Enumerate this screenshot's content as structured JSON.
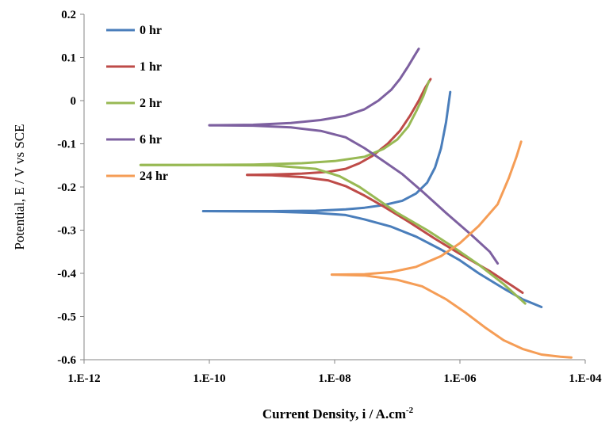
{
  "chart_data": {
    "type": "line",
    "title": "",
    "xlabel": "Current Density, i / A.cm",
    "xlabel_superscript": "-2",
    "ylabel": "Potential, E / V vs SCE",
    "x_scale": "log",
    "xlim": [
      1e-12,
      0.0001
    ],
    "ylim": [
      -0.6,
      0.2
    ],
    "x_tick_labels": [
      "1.E-12",
      "1.E-10",
      "1.E-08",
      "1.E-06",
      "1.E-04"
    ],
    "x_tick_values": [
      1e-12,
      1e-10,
      1e-08,
      1e-06,
      0.0001
    ],
    "y_ticks": [
      "-0.6",
      "-0.5",
      "-0.4",
      "-0.3",
      "-0.2",
      "-0.1",
      "0",
      "0.1",
      "0.2"
    ],
    "y_tick_values": [
      -0.6,
      -0.5,
      -0.4,
      -0.3,
      -0.2,
      -0.1,
      0,
      0.1,
      0.2
    ],
    "grid": false,
    "legend_position": "top-left",
    "series": [
      {
        "name": "0 hr",
        "color": "#4a7ebb",
        "anodic": [
          [
            8e-11,
            -0.256
          ],
          [
            1e-09,
            -0.256
          ],
          [
            5e-09,
            -0.255
          ],
          [
            1.5e-08,
            -0.252
          ],
          [
            3e-08,
            -0.248
          ],
          [
            6e-08,
            -0.242
          ],
          [
            1.2e-07,
            -0.232
          ],
          [
            2e-07,
            -0.215
          ],
          [
            3e-07,
            -0.19
          ],
          [
            4e-07,
            -0.155
          ],
          [
            5e-07,
            -0.11
          ],
          [
            6e-07,
            -0.05
          ],
          [
            7e-07,
            0.02
          ]
        ],
        "cathodic": [
          [
            8e-11,
            -0.256
          ],
          [
            1e-09,
            -0.257
          ],
          [
            5e-09,
            -0.26
          ],
          [
            1.5e-08,
            -0.265
          ],
          [
            3e-08,
            -0.275
          ],
          [
            8e-08,
            -0.292
          ],
          [
            2e-07,
            -0.315
          ],
          [
            5e-07,
            -0.345
          ],
          [
            1e-06,
            -0.37
          ],
          [
            2e-06,
            -0.4
          ],
          [
            5e-06,
            -0.435
          ],
          [
            1e-05,
            -0.46
          ],
          [
            2e-05,
            -0.478
          ]
        ]
      },
      {
        "name": "1 hr",
        "color": "#be4b48",
        "anodic": [
          [
            4e-10,
            -0.172
          ],
          [
            1e-09,
            -0.171
          ],
          [
            3e-09,
            -0.169
          ],
          [
            8e-09,
            -0.165
          ],
          [
            1.5e-08,
            -0.158
          ],
          [
            2.5e-08,
            -0.145
          ],
          [
            4e-08,
            -0.128
          ],
          [
            7e-08,
            -0.1
          ],
          [
            1.1e-07,
            -0.07
          ],
          [
            1.6e-07,
            -0.035
          ],
          [
            2.2e-07,
            0.0
          ],
          [
            2.8e-07,
            0.03
          ],
          [
            3.4e-07,
            0.05
          ]
        ],
        "cathodic": [
          [
            4e-10,
            -0.172
          ],
          [
            1e-09,
            -0.173
          ],
          [
            3e-09,
            -0.177
          ],
          [
            8e-09,
            -0.185
          ],
          [
            1.5e-08,
            -0.198
          ],
          [
            3e-08,
            -0.22
          ],
          [
            6e-08,
            -0.245
          ],
          [
            1.5e-07,
            -0.28
          ],
          [
            4e-07,
            -0.32
          ],
          [
            1e-06,
            -0.355
          ],
          [
            3e-06,
            -0.395
          ],
          [
            7e-06,
            -0.43
          ],
          [
            1e-05,
            -0.445
          ]
        ]
      },
      {
        "name": "2 hr",
        "color": "#98b954",
        "anodic": [
          [
            8e-12,
            -0.149
          ],
          [
            5e-11,
            -0.149
          ],
          [
            5e-10,
            -0.148
          ],
          [
            3e-09,
            -0.145
          ],
          [
            1e-08,
            -0.14
          ],
          [
            3e-08,
            -0.13
          ],
          [
            6e-08,
            -0.112
          ],
          [
            1e-07,
            -0.09
          ],
          [
            1.5e-07,
            -0.06
          ],
          [
            2e-07,
            -0.025
          ],
          [
            2.6e-07,
            0.01
          ],
          [
            3.2e-07,
            0.045
          ]
        ],
        "cathodic": [
          [
            8e-12,
            -0.149
          ],
          [
            5e-11,
            -0.149
          ],
          [
            1e-09,
            -0.15
          ],
          [
            5e-09,
            -0.158
          ],
          [
            1.2e-08,
            -0.175
          ],
          [
            2.5e-08,
            -0.2
          ],
          [
            5e-08,
            -0.23
          ],
          [
            1e-07,
            -0.26
          ],
          [
            3e-07,
            -0.3
          ],
          [
            8e-07,
            -0.34
          ],
          [
            2e-06,
            -0.38
          ],
          [
            5e-06,
            -0.425
          ],
          [
            1.1e-05,
            -0.47
          ]
        ]
      },
      {
        "name": "6 hr",
        "color": "#7d60a0",
        "anodic": [
          [
            1e-10,
            -0.057
          ],
          [
            5e-10,
            -0.056
          ],
          [
            2e-09,
            -0.052
          ],
          [
            6e-09,
            -0.045
          ],
          [
            1.5e-08,
            -0.035
          ],
          [
            3e-08,
            -0.02
          ],
          [
            5e-08,
            0.0
          ],
          [
            8e-08,
            0.025
          ],
          [
            1.1e-07,
            0.05
          ],
          [
            1.5e-07,
            0.08
          ],
          [
            1.9e-07,
            0.105
          ],
          [
            2.2e-07,
            0.12
          ]
        ],
        "cathodic": [
          [
            1e-10,
            -0.057
          ],
          [
            5e-10,
            -0.058
          ],
          [
            2e-09,
            -0.062
          ],
          [
            6e-09,
            -0.07
          ],
          [
            1.5e-08,
            -0.085
          ],
          [
            3e-08,
            -0.11
          ],
          [
            6e-08,
            -0.14
          ],
          [
            1.2e-07,
            -0.17
          ],
          [
            2.5e-07,
            -0.21
          ],
          [
            6e-07,
            -0.26
          ],
          [
            1.5e-06,
            -0.31
          ],
          [
            3e-06,
            -0.35
          ],
          [
            4e-06,
            -0.377
          ]
        ]
      },
      {
        "name": "24 hr",
        "color": "#f59d56",
        "anodic": [
          [
            9e-09,
            -0.403
          ],
          [
            3e-08,
            -0.402
          ],
          [
            8e-08,
            -0.397
          ],
          [
            2e-07,
            -0.385
          ],
          [
            5e-07,
            -0.36
          ],
          [
            1e-06,
            -0.33
          ],
          [
            2e-06,
            -0.29
          ],
          [
            4e-06,
            -0.24
          ],
          [
            6e-06,
            -0.18
          ],
          [
            8e-06,
            -0.13
          ],
          [
            9.5e-06,
            -0.095
          ]
        ],
        "cathodic": [
          [
            9e-09,
            -0.403
          ],
          [
            3e-08,
            -0.405
          ],
          [
            1e-07,
            -0.415
          ],
          [
            2.5e-07,
            -0.43
          ],
          [
            6e-07,
            -0.46
          ],
          [
            1.2e-06,
            -0.49
          ],
          [
            2.5e-06,
            -0.525
          ],
          [
            5e-06,
            -0.555
          ],
          [
            1e-05,
            -0.575
          ],
          [
            2e-05,
            -0.588
          ],
          [
            4e-05,
            -0.593
          ],
          [
            6e-05,
            -0.595
          ]
        ]
      }
    ]
  }
}
